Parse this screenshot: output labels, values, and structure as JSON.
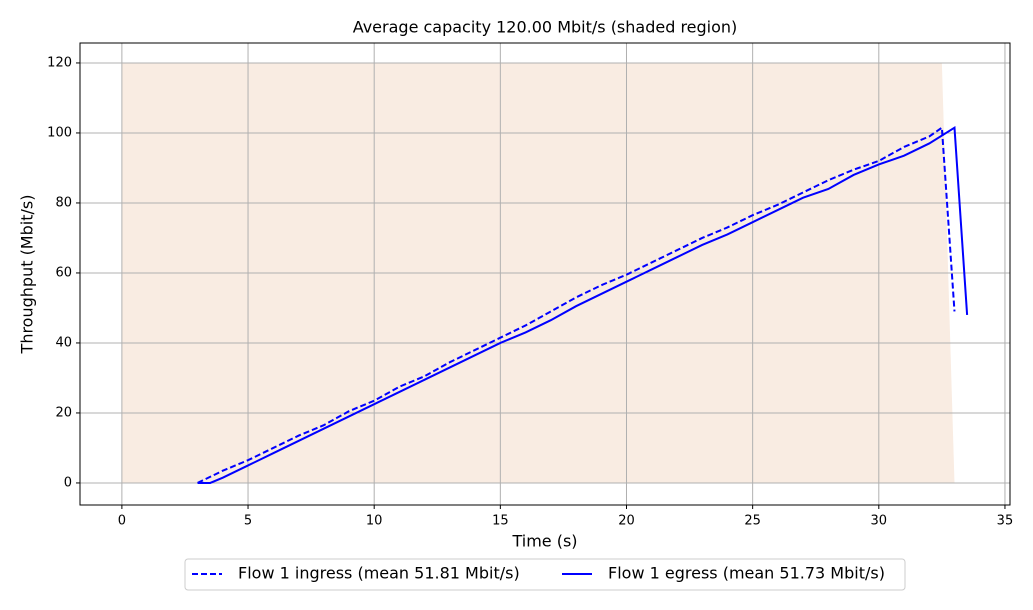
{
  "chart_data": {
    "type": "line",
    "title": "Average capacity 120.00 Mbit/s (shaded region)",
    "x_label": "Time (s)",
    "y_label": "Throughput (Mbit/s)",
    "xlim": [
      -1.66,
      35.2
    ],
    "ylim": [
      -6.3,
      125.7
    ],
    "xticks": [
      0,
      5,
      10,
      15,
      20,
      25,
      30,
      35
    ],
    "yticks": [
      0,
      20,
      40,
      60,
      80,
      100,
      120
    ],
    "grid": true,
    "legend": "bottom-outside",
    "shaded_region": {
      "color": "#f9ece2",
      "x": [
        0,
        32.5,
        33
      ],
      "values": [
        120,
        120,
        0
      ]
    },
    "series": [
      {
        "name": "Flow 1 ingress (mean 51.81 Mbit/s)",
        "color": "#0000ff",
        "style": "dashed",
        "x": [
          3,
          4,
          5,
          6,
          7,
          8,
          9,
          10,
          11,
          12,
          13,
          14,
          15,
          16,
          17,
          18,
          19,
          20,
          21,
          22,
          23,
          24,
          25,
          26,
          27,
          28,
          29,
          30,
          31,
          32,
          32.5,
          33
        ],
        "values": [
          0,
          3.5,
          6.5,
          10,
          13.5,
          16.5,
          20.5,
          23.5,
          27.5,
          30.5,
          34.5,
          38,
          41.5,
          45,
          49,
          53,
          56.5,
          59.5,
          63,
          66.5,
          70,
          73,
          76.5,
          79.5,
          83,
          86.5,
          89.5,
          92,
          96,
          99,
          101.5,
          49
        ]
      },
      {
        "name": "Flow 1 egress (mean 51.73 Mbit/s)",
        "color": "#0000ff",
        "style": "solid",
        "x": [
          3,
          3.5,
          4,
          5,
          6,
          7,
          8,
          9,
          10,
          11,
          12,
          13,
          14,
          15,
          16,
          17,
          18,
          19,
          20,
          21,
          22,
          23,
          24,
          25,
          26,
          27,
          28,
          29,
          30,
          31,
          32,
          33,
          33.5
        ],
        "values": [
          0,
          0,
          1.5,
          5,
          8.5,
          12,
          15.5,
          19,
          22.5,
          26,
          29.5,
          33,
          36.5,
          40,
          43,
          46.5,
          50.5,
          54,
          57.5,
          61,
          64.5,
          68,
          71,
          74.5,
          78,
          81.5,
          84,
          88,
          91,
          93.5,
          97,
          101.5,
          48
        ]
      }
    ]
  }
}
